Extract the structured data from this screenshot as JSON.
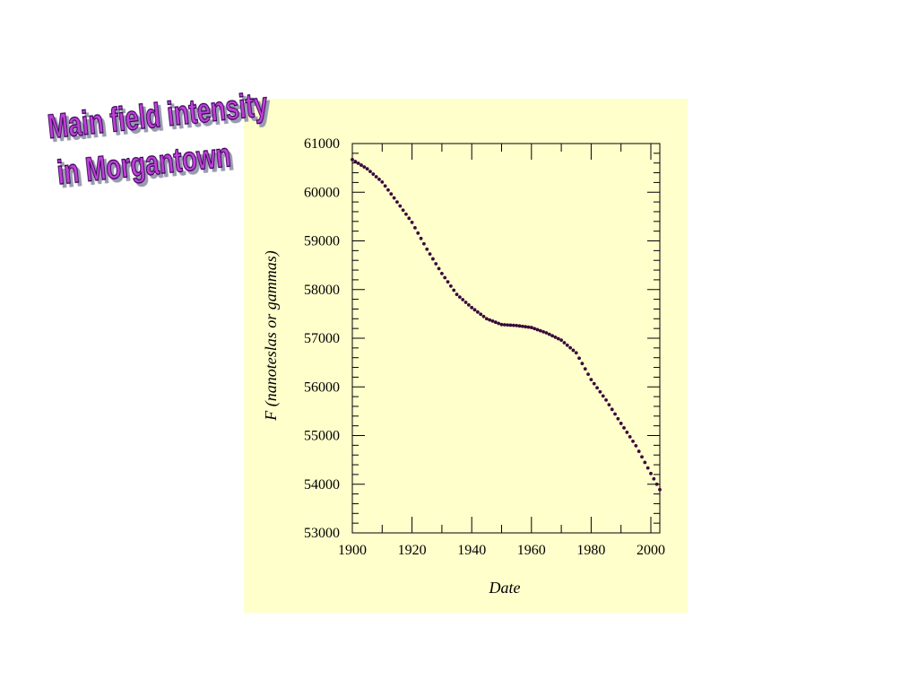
{
  "chart_data": {
    "type": "scatter",
    "title": [
      "Main field intensity",
      "in Morgantown"
    ],
    "xlabel": "Date",
    "ylabel": "F (nanoteslas or gammas)",
    "color": "#3a0a3a",
    "xlim": [
      1900,
      2003
    ],
    "ylim": [
      53000,
      61000
    ],
    "xticks": [
      1900,
      1920,
      1940,
      1960,
      1980,
      2000
    ],
    "xticks_minor": [
      1910,
      1930,
      1950,
      1970,
      1990
    ],
    "yticks": [
      53000,
      54000,
      55000,
      56000,
      57000,
      58000,
      59000,
      60000,
      61000
    ],
    "yticks_minor": [
      53200,
      53400,
      53600,
      53800,
      54200,
      54400,
      54600,
      54800,
      55200,
      55400,
      55600,
      55800,
      56200,
      56400,
      56600,
      56800,
      57200,
      57400,
      57600,
      57800,
      58200,
      58400,
      58600,
      58800,
      59200,
      59400,
      59600,
      59800,
      60200,
      60400,
      60600,
      60800
    ],
    "x": [
      1900,
      1901,
      1902,
      1903,
      1904,
      1905,
      1906,
      1907,
      1908,
      1909,
      1910,
      1911,
      1912,
      1913,
      1914,
      1915,
      1916,
      1917,
      1918,
      1919,
      1920,
      1921,
      1922,
      1923,
      1924,
      1925,
      1926,
      1927,
      1928,
      1929,
      1930,
      1931,
      1932,
      1933,
      1934,
      1935,
      1936,
      1937,
      1938,
      1939,
      1940,
      1941,
      1942,
      1943,
      1944,
      1945,
      1946,
      1947,
      1948,
      1949,
      1950,
      1951,
      1952,
      1953,
      1954,
      1955,
      1956,
      1957,
      1958,
      1959,
      1960,
      1961,
      1962,
      1963,
      1964,
      1965,
      1966,
      1967,
      1968,
      1969,
      1970,
      1971,
      1972,
      1973,
      1974,
      1975,
      1976,
      1977,
      1978,
      1979,
      1980,
      1981,
      1982,
      1983,
      1984,
      1985,
      1986,
      1987,
      1988,
      1989,
      1990,
      1991,
      1992,
      1993,
      1994,
      1995,
      1996,
      1997,
      1998,
      1999,
      2000,
      2001,
      2002,
      2003
    ],
    "values": [
      60670,
      60632,
      60594,
      60556,
      60518,
      60480,
      60426,
      60372,
      60318,
      60264,
      60210,
      60128,
      60046,
      59964,
      59882,
      59800,
      59716,
      59632,
      59548,
      59464,
      59380,
      59270,
      59160,
      59050,
      58940,
      58830,
      58730,
      58630,
      58530,
      58430,
      58330,
      58244,
      58158,
      58072,
      57986,
      57900,
      57846,
      57792,
      57738,
      57684,
      57630,
      57584,
      57538,
      57492,
      57446,
      57400,
      57376,
      57352,
      57328,
      57304,
      57280,
      57276,
      57272,
      57268,
      57264,
      57260,
      57252,
      57244,
      57236,
      57228,
      57220,
      57198,
      57176,
      57154,
      57132,
      57110,
      57080,
      57050,
      57020,
      56990,
      56960,
      56908,
      56856,
      56804,
      56752,
      56700,
      56590,
      56480,
      56370,
      56260,
      56150,
      56066,
      55982,
      55898,
      55814,
      55730,
      55634,
      55538,
      55442,
      55346,
      55250,
      55158,
      55066,
      54974,
      54882,
      54790,
      54676,
      54562,
      54448,
      54334,
      54220,
      54110,
      54000,
      53890
    ]
  }
}
